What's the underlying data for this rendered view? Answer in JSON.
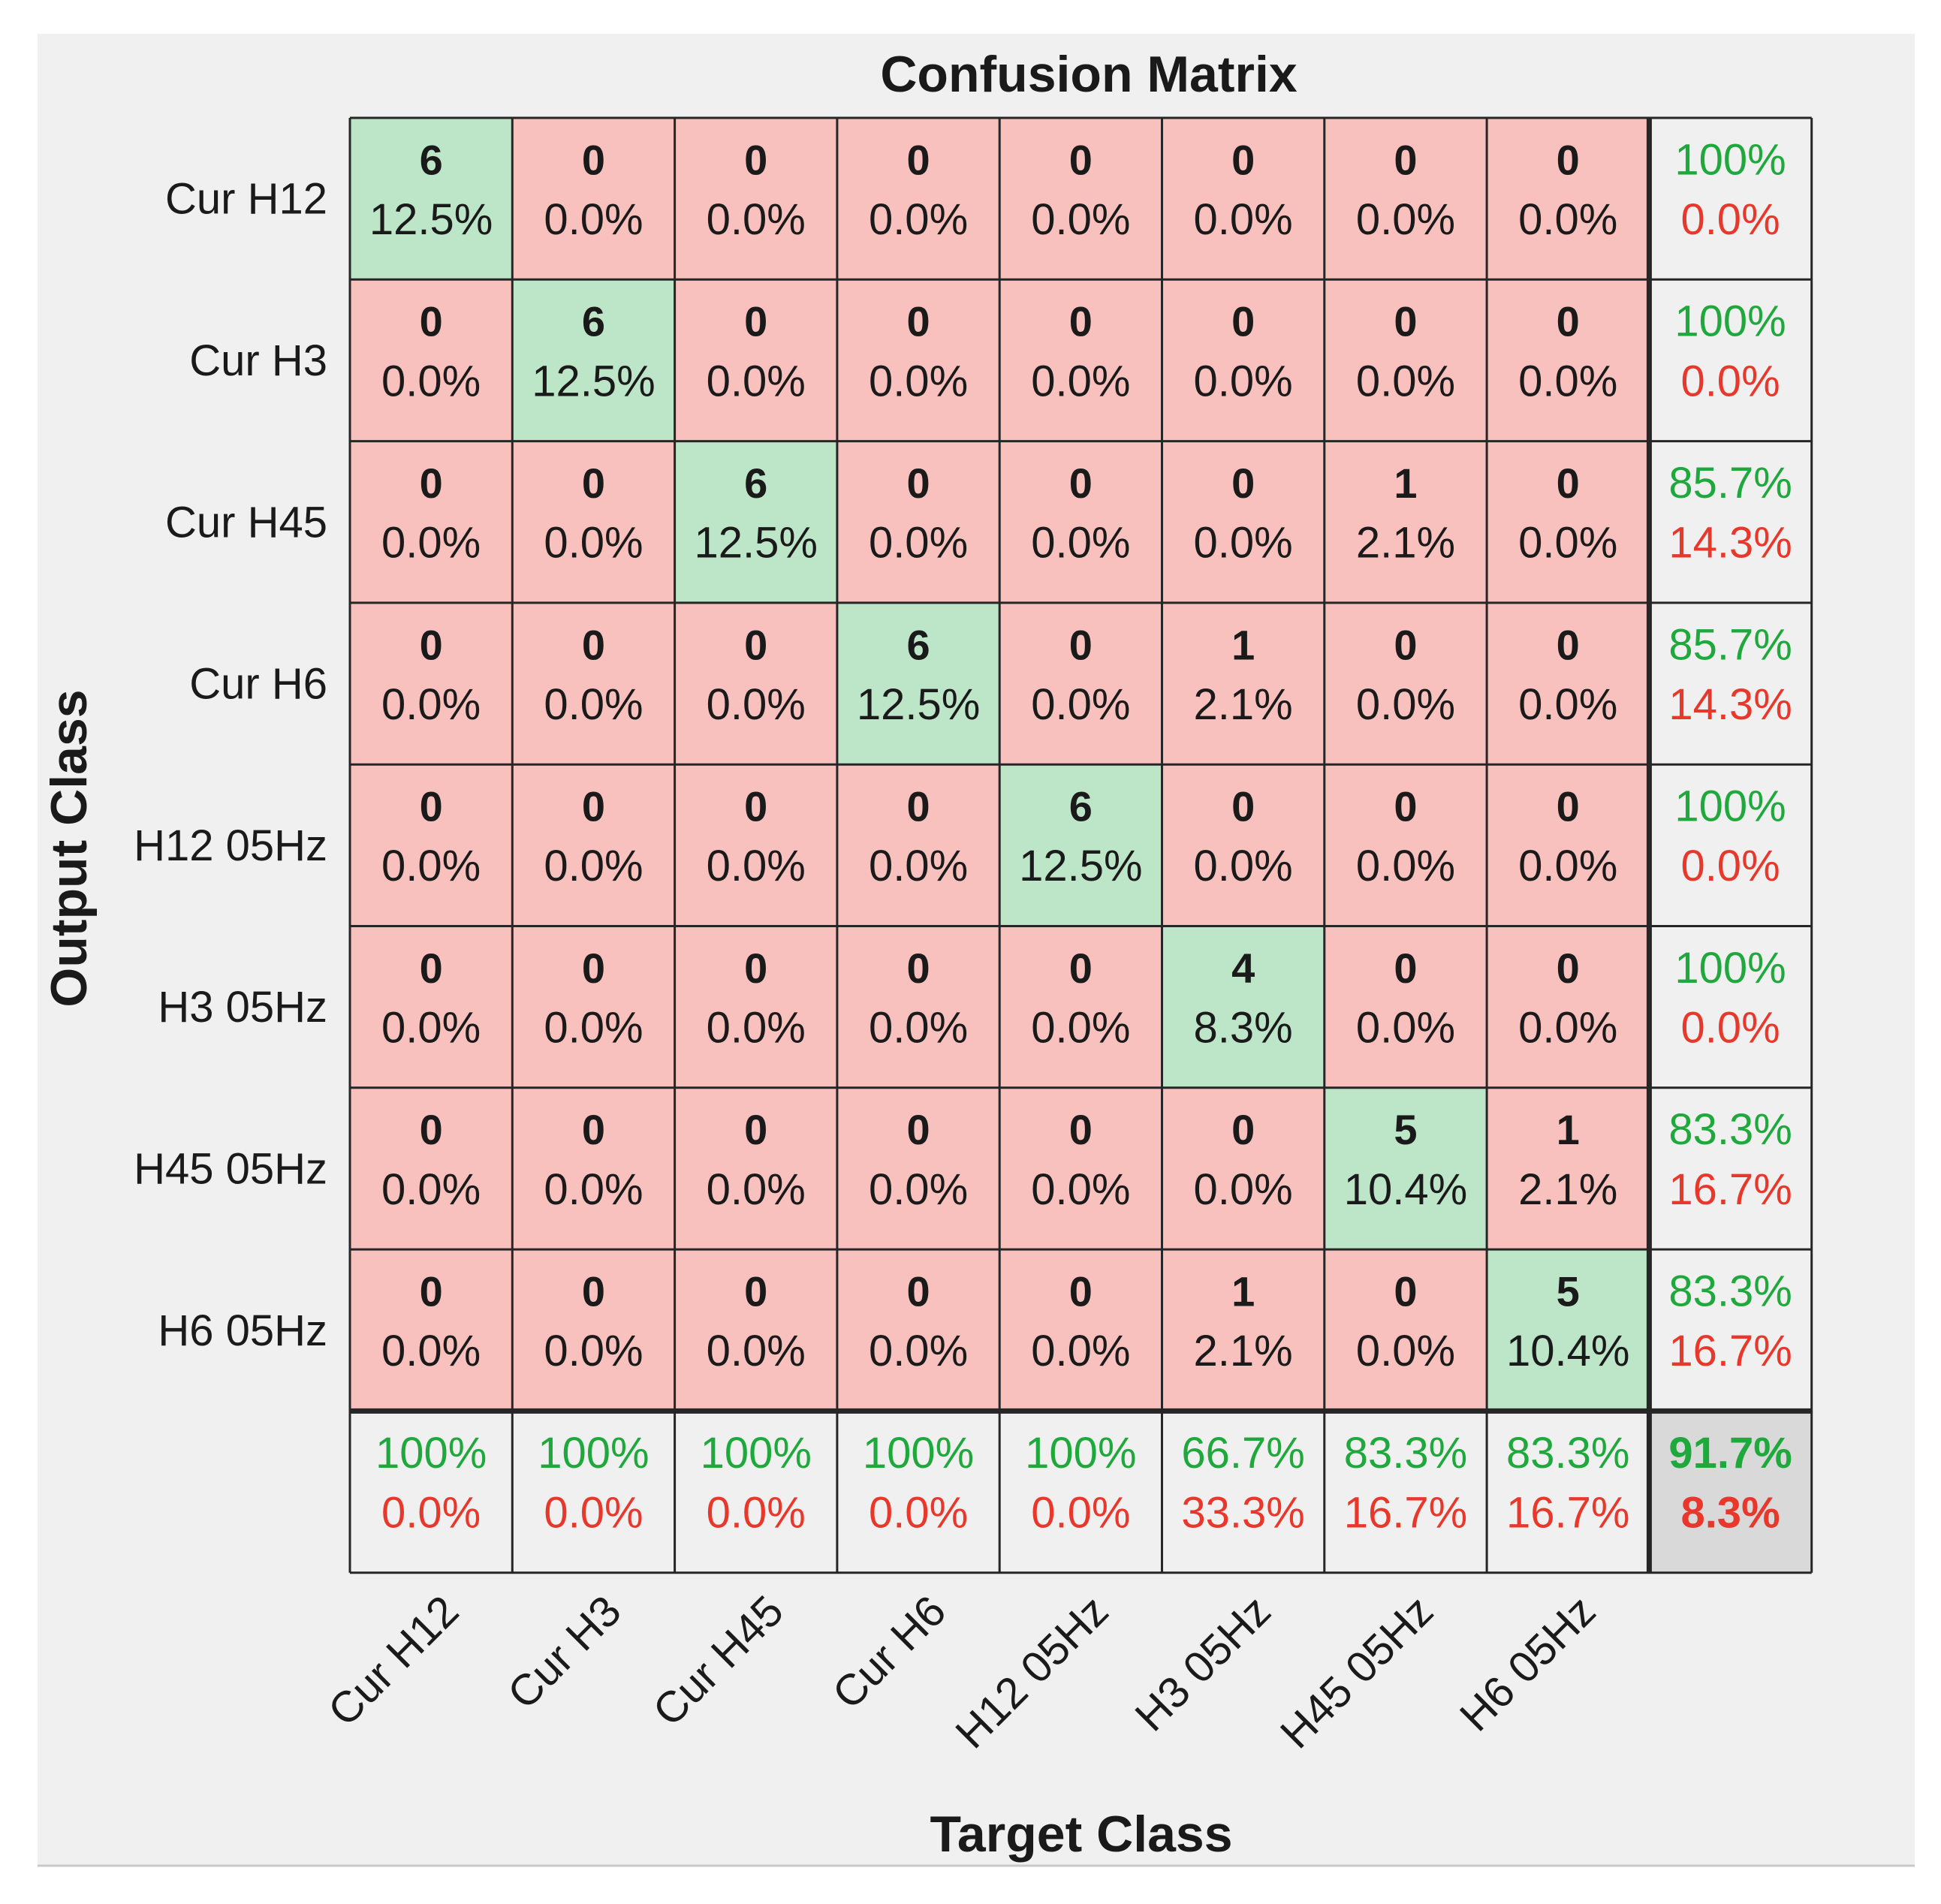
{
  "colors": {
    "figure_bg": "#f0f0f0",
    "correct_cell": "#bde5c8",
    "incorrect_cell": "#f8c1be",
    "summary_cell": "#f0f0f0",
    "overall_cell": "#d9d9d9",
    "grid_line": "#262626",
    "green_text": "#1fa83c",
    "red_text": "#e8382c",
    "text": "#1a1a1a"
  },
  "chart_data": {
    "type": "heatmap",
    "title": "Confusion Matrix",
    "xlabel": "Target Class",
    "ylabel": "Output Class",
    "classes": [
      "Cur H12",
      "Cur H3",
      "Cur H45",
      "Cur H6",
      "H12 05Hz",
      "H3 05Hz",
      "H45 05Hz",
      "H6 05Hz"
    ],
    "matrix": [
      [
        {
          "count": "6",
          "pct": "12.5%"
        },
        {
          "count": "0",
          "pct": "0.0%"
        },
        {
          "count": "0",
          "pct": "0.0%"
        },
        {
          "count": "0",
          "pct": "0.0%"
        },
        {
          "count": "0",
          "pct": "0.0%"
        },
        {
          "count": "0",
          "pct": "0.0%"
        },
        {
          "count": "0",
          "pct": "0.0%"
        },
        {
          "count": "0",
          "pct": "0.0%"
        }
      ],
      [
        {
          "count": "0",
          "pct": "0.0%"
        },
        {
          "count": "6",
          "pct": "12.5%"
        },
        {
          "count": "0",
          "pct": "0.0%"
        },
        {
          "count": "0",
          "pct": "0.0%"
        },
        {
          "count": "0",
          "pct": "0.0%"
        },
        {
          "count": "0",
          "pct": "0.0%"
        },
        {
          "count": "0",
          "pct": "0.0%"
        },
        {
          "count": "0",
          "pct": "0.0%"
        }
      ],
      [
        {
          "count": "0",
          "pct": "0.0%"
        },
        {
          "count": "0",
          "pct": "0.0%"
        },
        {
          "count": "6",
          "pct": "12.5%"
        },
        {
          "count": "0",
          "pct": "0.0%"
        },
        {
          "count": "0",
          "pct": "0.0%"
        },
        {
          "count": "0",
          "pct": "0.0%"
        },
        {
          "count": "1",
          "pct": "2.1%"
        },
        {
          "count": "0",
          "pct": "0.0%"
        }
      ],
      [
        {
          "count": "0",
          "pct": "0.0%"
        },
        {
          "count": "0",
          "pct": "0.0%"
        },
        {
          "count": "0",
          "pct": "0.0%"
        },
        {
          "count": "6",
          "pct": "12.5%"
        },
        {
          "count": "0",
          "pct": "0.0%"
        },
        {
          "count": "1",
          "pct": "2.1%"
        },
        {
          "count": "0",
          "pct": "0.0%"
        },
        {
          "count": "0",
          "pct": "0.0%"
        }
      ],
      [
        {
          "count": "0",
          "pct": "0.0%"
        },
        {
          "count": "0",
          "pct": "0.0%"
        },
        {
          "count": "0",
          "pct": "0.0%"
        },
        {
          "count": "0",
          "pct": "0.0%"
        },
        {
          "count": "6",
          "pct": "12.5%"
        },
        {
          "count": "0",
          "pct": "0.0%"
        },
        {
          "count": "0",
          "pct": "0.0%"
        },
        {
          "count": "0",
          "pct": "0.0%"
        }
      ],
      [
        {
          "count": "0",
          "pct": "0.0%"
        },
        {
          "count": "0",
          "pct": "0.0%"
        },
        {
          "count": "0",
          "pct": "0.0%"
        },
        {
          "count": "0",
          "pct": "0.0%"
        },
        {
          "count": "0",
          "pct": "0.0%"
        },
        {
          "count": "4",
          "pct": "8.3%"
        },
        {
          "count": "0",
          "pct": "0.0%"
        },
        {
          "count": "0",
          "pct": "0.0%"
        }
      ],
      [
        {
          "count": "0",
          "pct": "0.0%"
        },
        {
          "count": "0",
          "pct": "0.0%"
        },
        {
          "count": "0",
          "pct": "0.0%"
        },
        {
          "count": "0",
          "pct": "0.0%"
        },
        {
          "count": "0",
          "pct": "0.0%"
        },
        {
          "count": "0",
          "pct": "0.0%"
        },
        {
          "count": "5",
          "pct": "10.4%"
        },
        {
          "count": "1",
          "pct": "2.1%"
        }
      ],
      [
        {
          "count": "0",
          "pct": "0.0%"
        },
        {
          "count": "0",
          "pct": "0.0%"
        },
        {
          "count": "0",
          "pct": "0.0%"
        },
        {
          "count": "0",
          "pct": "0.0%"
        },
        {
          "count": "0",
          "pct": "0.0%"
        },
        {
          "count": "1",
          "pct": "2.1%"
        },
        {
          "count": "0",
          "pct": "0.0%"
        },
        {
          "count": "5",
          "pct": "10.4%"
        }
      ]
    ],
    "row_summary": [
      {
        "correct": "100%",
        "incorrect": "0.0%"
      },
      {
        "correct": "100%",
        "incorrect": "0.0%"
      },
      {
        "correct": "85.7%",
        "incorrect": "14.3%"
      },
      {
        "correct": "85.7%",
        "incorrect": "14.3%"
      },
      {
        "correct": "100%",
        "incorrect": "0.0%"
      },
      {
        "correct": "100%",
        "incorrect": "0.0%"
      },
      {
        "correct": "83.3%",
        "incorrect": "16.7%"
      },
      {
        "correct": "83.3%",
        "incorrect": "16.7%"
      }
    ],
    "col_summary": [
      {
        "correct": "100%",
        "incorrect": "0.0%"
      },
      {
        "correct": "100%",
        "incorrect": "0.0%"
      },
      {
        "correct": "100%",
        "incorrect": "0.0%"
      },
      {
        "correct": "100%",
        "incorrect": "0.0%"
      },
      {
        "correct": "100%",
        "incorrect": "0.0%"
      },
      {
        "correct": "66.7%",
        "incorrect": "33.3%"
      },
      {
        "correct": "83.3%",
        "incorrect": "16.7%"
      },
      {
        "correct": "83.3%",
        "incorrect": "16.7%"
      }
    ],
    "overall": {
      "correct": "91.7%",
      "incorrect": "8.3%"
    }
  }
}
